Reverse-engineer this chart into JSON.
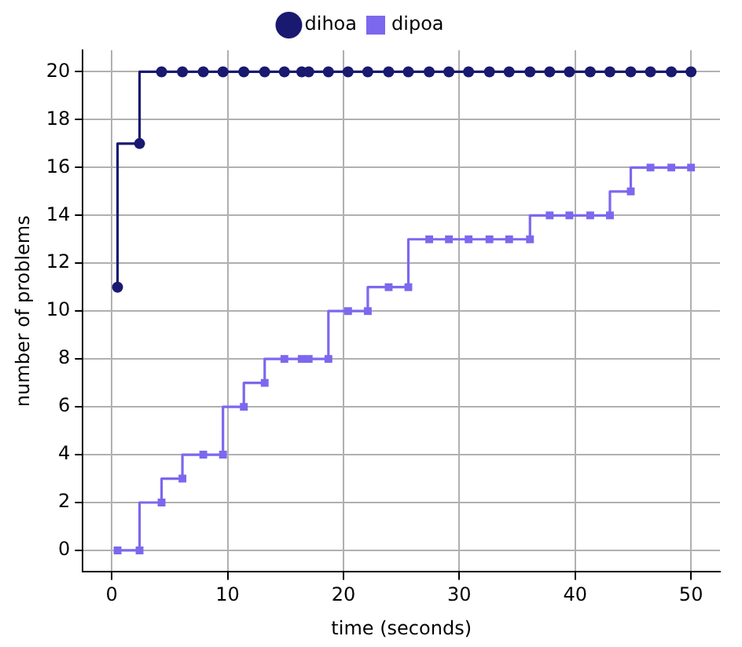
{
  "chart_data": {
    "type": "step",
    "xlabel": "time (seconds)",
    "ylabel": "number of problems",
    "xlim": [
      -2.5,
      52.5
    ],
    "xticks": [
      0,
      10,
      20,
      30,
      40,
      50
    ],
    "ylim": [
      -0.9,
      20.9
    ],
    "yticks": [
      0,
      2,
      4,
      6,
      8,
      10,
      12,
      14,
      16,
      18,
      20
    ],
    "grid": true,
    "legend": "top",
    "line_style": "solid",
    "series": [
      {
        "name": "dihoa",
        "color": "#191970",
        "marker": "circle",
        "x": [
          0.5,
          2.4,
          4.3,
          6.1,
          7.9,
          9.6,
          11.4,
          13.2,
          14.9,
          16.4,
          17.0,
          18.7,
          20.4,
          22.1,
          23.9,
          25.6,
          27.4,
          29.1,
          30.8,
          32.6,
          34.3,
          36.1,
          37.8,
          39.5,
          41.3,
          43.0,
          44.8,
          46.5,
          48.3,
          50.0
        ],
        "values": [
          11,
          17,
          20,
          20,
          20,
          20,
          20,
          20,
          20,
          20,
          20,
          20,
          20,
          20,
          20,
          20,
          20,
          20,
          20,
          20,
          20,
          20,
          20,
          20,
          20,
          20,
          20,
          20,
          20,
          20
        ]
      },
      {
        "name": "dipoa",
        "color": "#7b68ee",
        "marker": "square",
        "x": [
          0.5,
          2.4,
          4.3,
          6.1,
          7.9,
          9.6,
          11.4,
          13.2,
          14.9,
          16.4,
          17.0,
          18.7,
          20.4,
          22.1,
          23.9,
          25.6,
          27.4,
          29.1,
          30.8,
          32.6,
          34.3,
          36.1,
          37.8,
          39.5,
          41.3,
          43.0,
          44.8,
          46.5,
          48.3,
          50.0
        ],
        "values": [
          0,
          0,
          2,
          3,
          4,
          4,
          6,
          7,
          8,
          8,
          8,
          8,
          10,
          10,
          11,
          11,
          13,
          13,
          13,
          13,
          13,
          13,
          14,
          14,
          14,
          14,
          15,
          16,
          16,
          16
        ]
      }
    ]
  }
}
